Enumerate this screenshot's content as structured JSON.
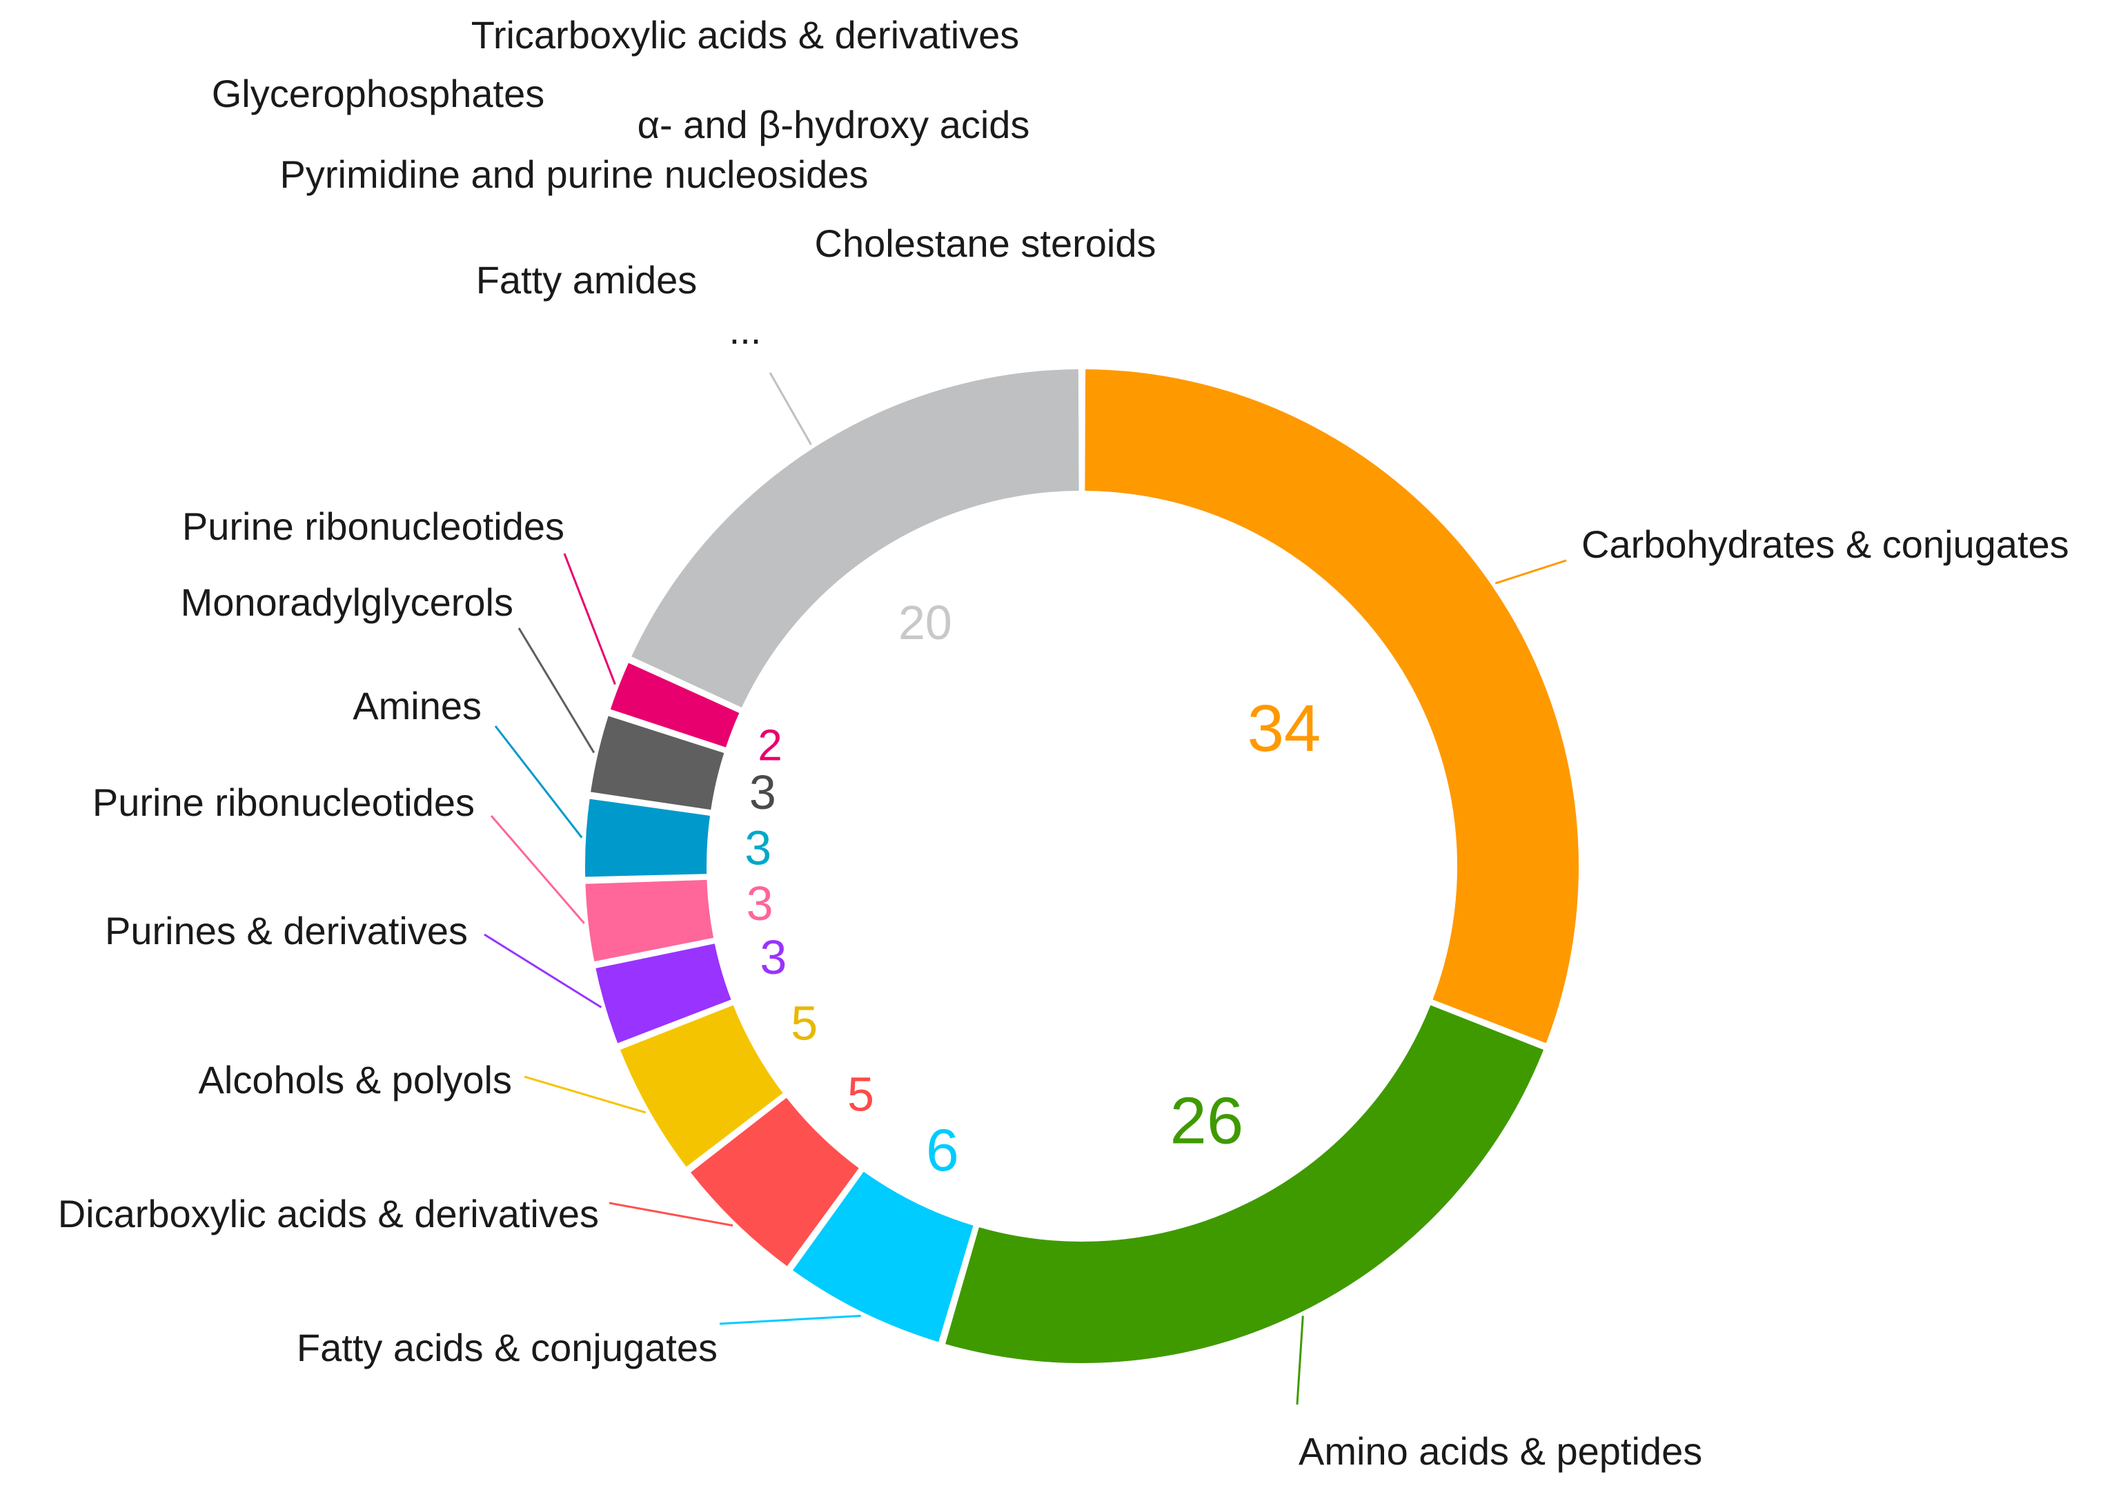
{
  "chart_data": {
    "type": "pie",
    "variant": "donut",
    "title": "",
    "slices": [
      {
        "label": "Carbohydrates & conjugates",
        "value": 34,
        "color": "#FF9900"
      },
      {
        "label": "Amino acids & peptides",
        "value": 26,
        "color": "#3F9A00"
      },
      {
        "label": "Fatty acids & conjugates",
        "value": 6,
        "color": "#00CCFF"
      },
      {
        "label": "Dicarboxylic acids & derivatives",
        "value": 5,
        "color": "#FF5050"
      },
      {
        "label": "Alcohols & polyols",
        "value": 5,
        "color": "#F5C400"
      },
      {
        "label": "Purines & derivatives",
        "value": 3,
        "color": "#9933FF"
      },
      {
        "label": "Purine ribonucleotides",
        "value": 3,
        "color": "#FF6699"
      },
      {
        "label": "Amines",
        "value": 3,
        "color": "#0099CC"
      },
      {
        "label": "Monoradylglycerols",
        "value": 3,
        "color": "#5F5F5F"
      },
      {
        "label": "Purine ribonucleotides",
        "value": 2,
        "color": "#E8006E"
      },
      {
        "label": "...",
        "value": 20,
        "color": "#BFC0C2"
      }
    ],
    "other_categories": [
      "Tricarboxylic acids & derivatives",
      "Glycerophosphates",
      "α- and β-hydroxy acids",
      "Pyrimidine and purine nucleosides",
      "Cholestane steroids",
      "Fatty amides"
    ],
    "value_label_colors": {
      "...": "#C8C8C8",
      "Monoradylglycerols": "#4A4A4A",
      "Amines": "#00A8C8",
      "Alcohols & polyols": "#E8B800",
      "Dicarboxylic acids & derivatives": "#FF4A4A"
    }
  }
}
